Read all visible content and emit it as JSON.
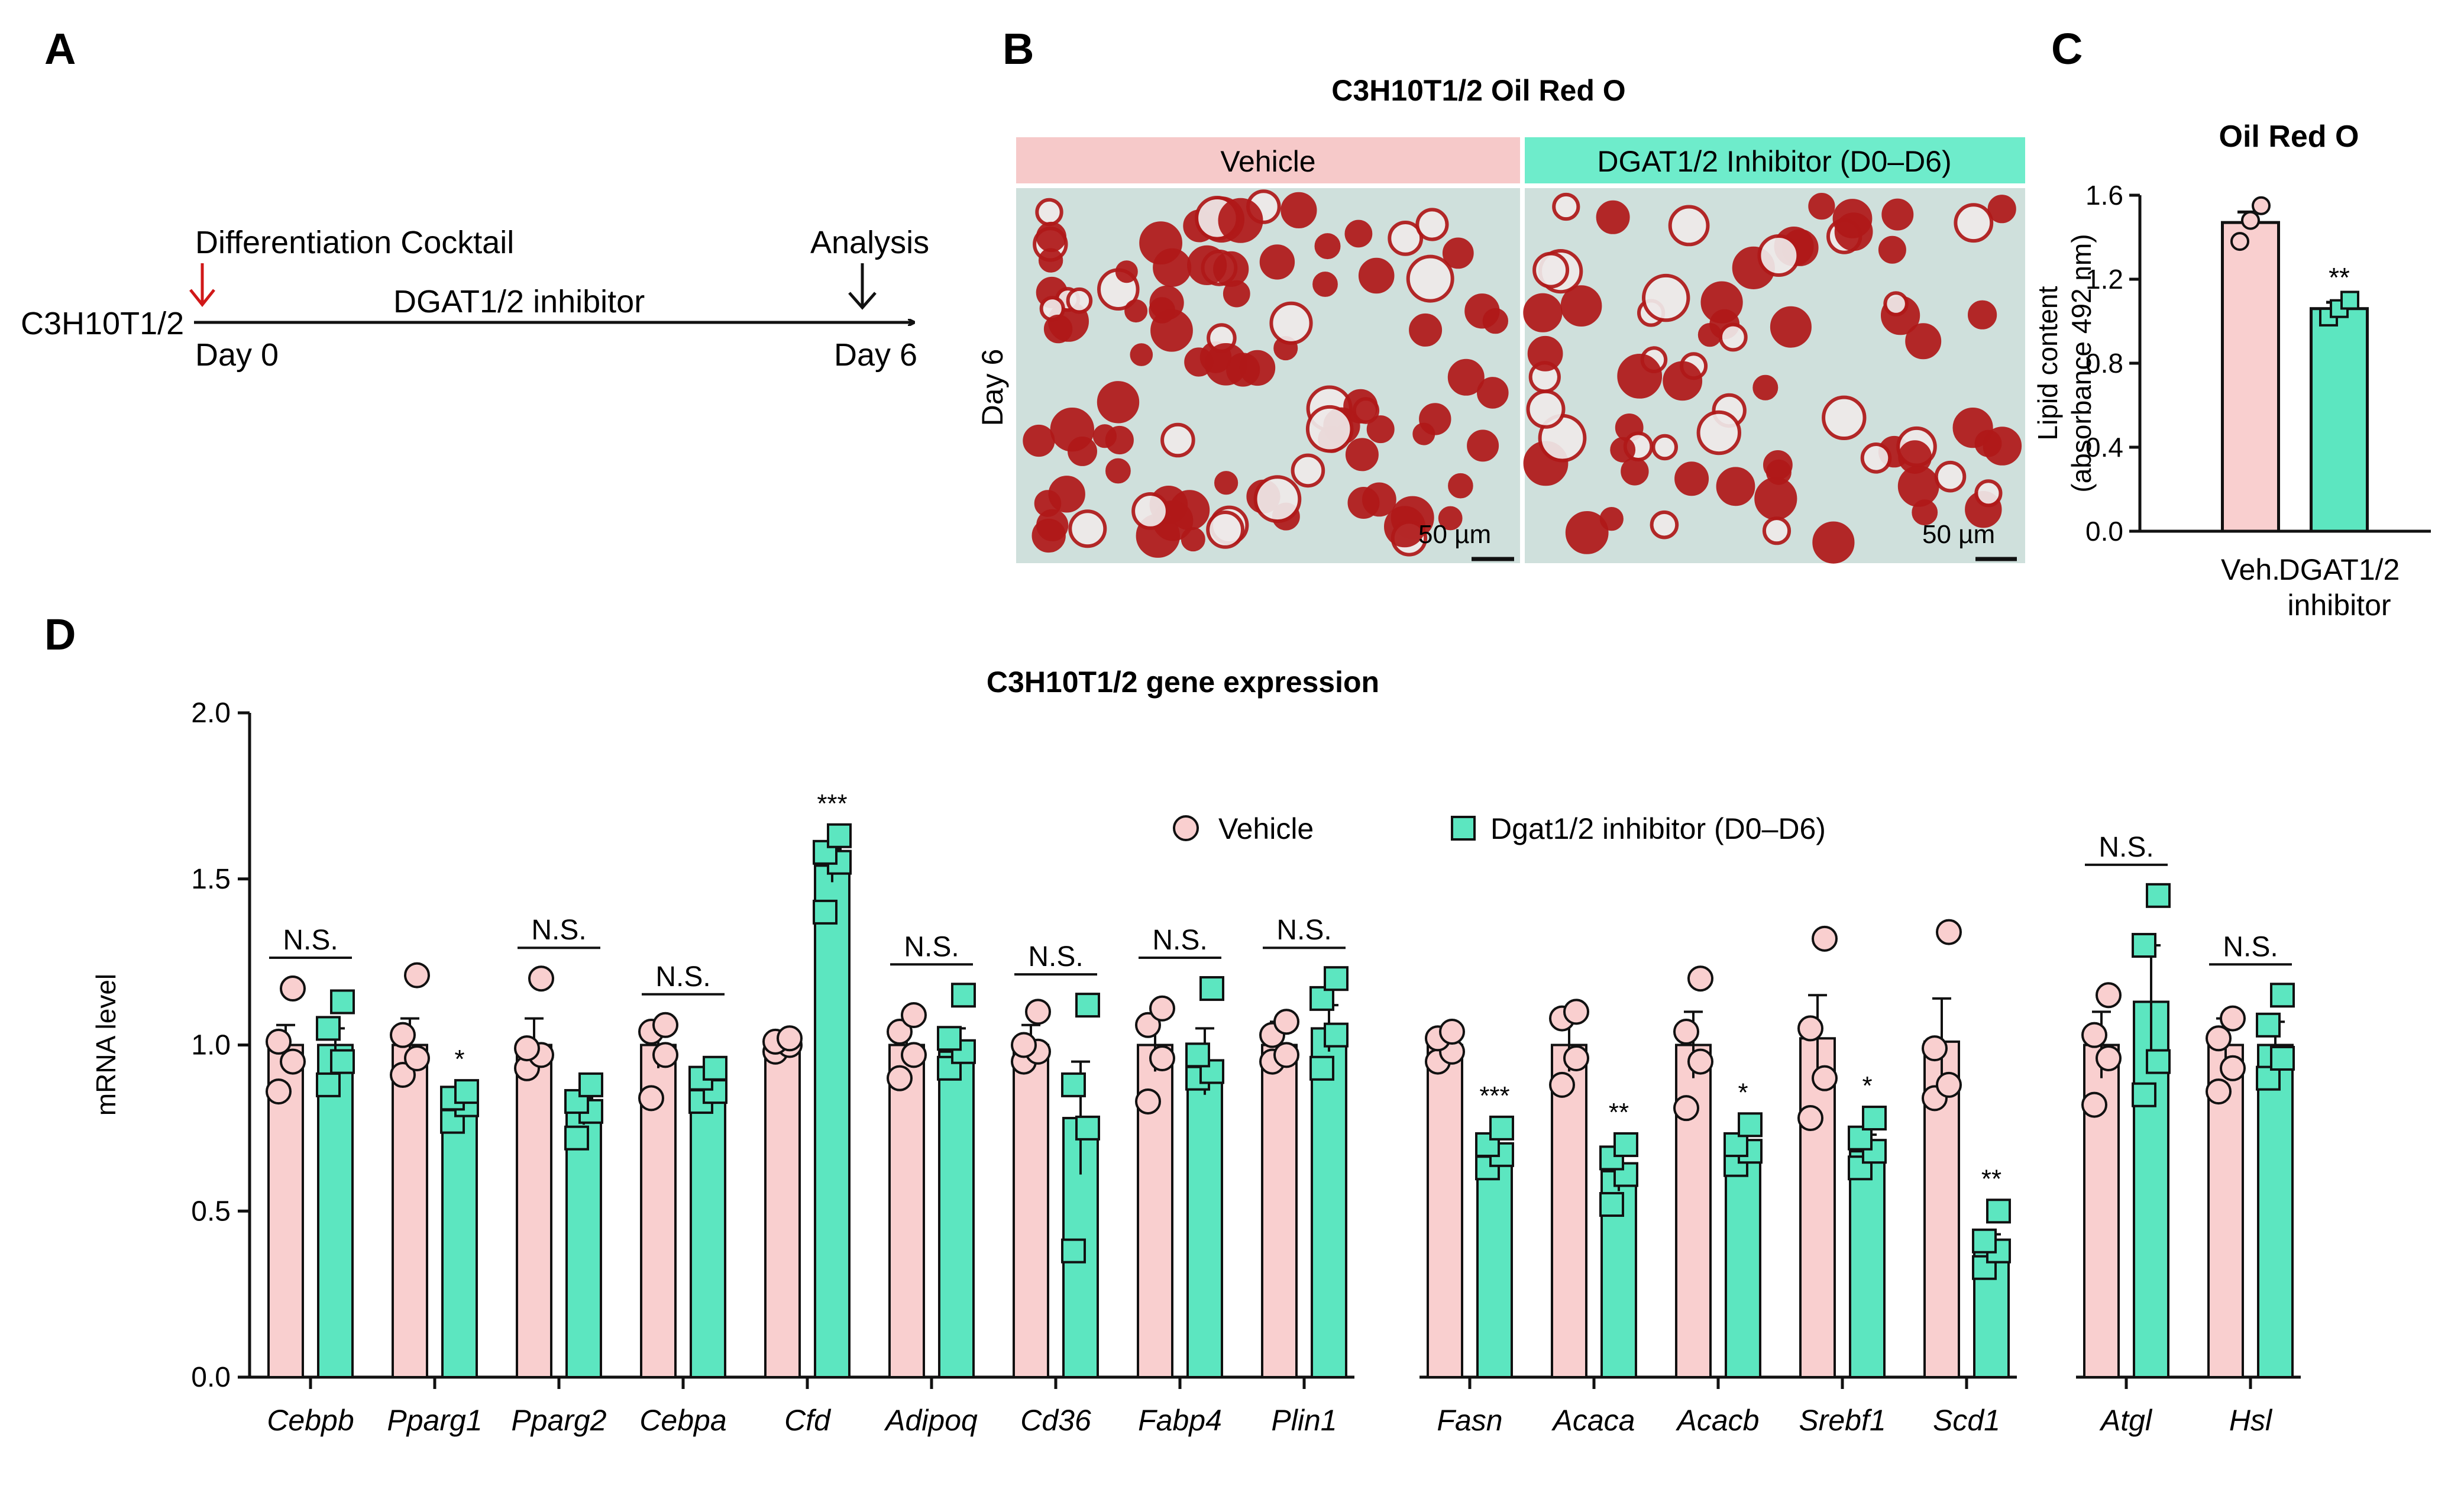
{
  "panels": {
    "a": "A",
    "b": "B",
    "c": "C",
    "d": "D"
  },
  "panel_a": {
    "cell_line": "C3H10T1/2",
    "cocktail": "Differentiation Cocktail",
    "treatment": "DGAT1/2 inhibitor",
    "analysis": "Analysis",
    "day_start": "Day 0",
    "day_end": "Day 6"
  },
  "panel_b": {
    "title": "C3H10T1/2 Oil Red O",
    "vehicle_label": "Vehicle",
    "inhibitor_label": "DGAT1/2 Inhibitor (D0–D6)",
    "row_label": "Day 6",
    "scale_bar_1": "50 µm",
    "scale_bar_2": "50 µm"
  },
  "colors": {
    "vehicle": "#f9cfcf",
    "inhibitor": "#5ce6c0",
    "header_vehicle": "#f6c9c9",
    "header_inhibitor": "#6eeccb",
    "stain_bg": "#cfe0dc",
    "stain_red": "#b01818",
    "arrow_red": "#d01818",
    "ink": "#111111"
  },
  "chart_data": [
    {
      "id": "C",
      "type": "bar",
      "title": "Oil Red O",
      "ylabel_line1": "Lipid content",
      "ylabel_line2": "(absorbance 492 nm)",
      "ylim": [
        0,
        1.6
      ],
      "yticks": [
        0.0,
        0.4,
        0.8,
        1.2,
        1.6
      ],
      "ytick_labels": [
        "0.0",
        "0.4",
        "0.8",
        "1.2",
        "1.6"
      ],
      "categories": [
        "Veh.",
        "DGAT1/2 inhibitor"
      ],
      "cat_lines": [
        [
          "Veh."
        ],
        [
          "DGAT1/2",
          "inhibitor"
        ]
      ],
      "means": [
        1.47,
        1.06
      ],
      "sems": [
        0.05,
        0.03
      ],
      "points": [
        [
          1.38,
          1.48,
          1.55
        ],
        [
          1.02,
          1.06,
          1.1
        ]
      ],
      "significance": [
        "",
        "**"
      ]
    },
    {
      "id": "D",
      "type": "bar",
      "title": "C3H10T1/2 gene expression",
      "ylabel": "mRNA level",
      "ylim": [
        0,
        2.0
      ],
      "yticks": [
        0.0,
        0.5,
        1.0,
        1.5,
        2.0
      ],
      "ytick_labels": [
        "0.0",
        "0.5",
        "1.0",
        "1.5",
        "2.0"
      ],
      "legend": [
        "Vehicle",
        "Dgat1/2 inhibitor (D0–D6)"
      ],
      "legend_position": "top-center",
      "categories": [
        "Cebpb",
        "Pparg1",
        "Pparg2",
        "Cebpa",
        "Cfd",
        "Adipoq",
        "Cd36",
        "Fabp4",
        "Plin1",
        "Fasn",
        "Acaca",
        "Acacb",
        "Srebf1",
        "Scd1",
        "Atgl",
        "Hsl"
      ],
      "groups": [
        [
          0,
          8
        ],
        [
          9,
          13
        ],
        [
          14,
          15
        ]
      ],
      "series": [
        {
          "name": "Vehicle",
          "means": [
            1.0,
            1.0,
            1.0,
            1.0,
            1.0,
            1.0,
            1.0,
            1.0,
            1.0,
            1.0,
            1.0,
            1.0,
            1.02,
            1.01,
            1.0,
            1.0
          ],
          "sems": [
            0.06,
            0.08,
            0.08,
            0.07,
            0.02,
            0.06,
            0.06,
            0.08,
            0.07,
            0.03,
            0.08,
            0.1,
            0.13,
            0.13,
            0.1,
            0.08
          ],
          "points": [
            [
              0.86,
              0.95,
              1.01,
              1.17
            ],
            [
              0.91,
              0.96,
              1.03,
              1.21
            ],
            [
              0.93,
              0.97,
              0.99,
              1.2
            ],
            [
              0.84,
              0.97,
              1.04,
              1.06
            ],
            [
              0.98,
              1.0,
              1.01,
              1.02
            ],
            [
              0.9,
              0.97,
              1.04,
              1.09
            ],
            [
              0.95,
              0.98,
              1.0,
              1.1
            ],
            [
              0.83,
              0.96,
              1.06,
              1.11
            ],
            [
              0.95,
              0.97,
              1.03,
              1.07
            ],
            [
              0.95,
              0.98,
              1.02,
              1.04
            ],
            [
              0.88,
              0.96,
              1.08,
              1.1
            ],
            [
              0.81,
              0.95,
              1.04,
              1.2
            ],
            [
              0.78,
              0.9,
              1.05,
              1.32
            ],
            [
              0.84,
              0.88,
              0.99,
              1.34
            ],
            [
              0.82,
              0.96,
              1.03,
              1.15
            ],
            [
              0.86,
              0.93,
              1.02,
              1.08
            ]
          ]
        },
        {
          "name": "Dgat1/2 inhibitor (D0–D6)",
          "means": [
            1.0,
            0.81,
            0.8,
            0.85,
            1.54,
            0.98,
            0.78,
            0.95,
            1.05,
            0.68,
            0.62,
            0.68,
            0.68,
            0.38,
            1.13,
            1.0
          ],
          "sems": [
            0.05,
            0.03,
            0.04,
            0.05,
            0.05,
            0.07,
            0.17,
            0.1,
            0.07,
            0.04,
            0.06,
            0.05,
            0.05,
            0.05,
            0.17,
            0.07
          ],
          "points": [
            [
              0.88,
              0.95,
              1.05,
              1.13
            ],
            [
              0.77,
              0.82,
              0.84,
              0.86
            ],
            [
              0.72,
              0.8,
              0.83,
              0.88
            ],
            [
              0.83,
              0.86,
              0.9,
              0.93
            ],
            [
              1.4,
              1.55,
              1.58,
              1.63
            ],
            [
              0.93,
              0.98,
              1.02,
              1.15
            ],
            [
              0.38,
              0.75,
              0.88,
              1.12
            ],
            [
              0.9,
              0.92,
              0.97,
              1.17
            ],
            [
              0.93,
              1.03,
              1.14,
              1.2
            ],
            [
              0.63,
              0.67,
              0.7,
              0.75
            ],
            [
              0.52,
              0.61,
              0.66,
              0.7
            ],
            [
              0.64,
              0.68,
              0.7,
              0.76
            ],
            [
              0.63,
              0.68,
              0.72,
              0.78
            ],
            [
              0.33,
              0.38,
              0.41,
              0.5
            ],
            [
              0.85,
              0.95,
              1.3,
              1.45
            ],
            [
              0.9,
              0.96,
              1.06,
              1.15
            ]
          ]
        }
      ],
      "significance": [
        "N.S.",
        "*",
        "N.S.",
        "N.S.",
        "***",
        "N.S.",
        "N.S.",
        "N.S.",
        "N.S.",
        "***",
        "**",
        "*",
        "*",
        "**",
        "N.S.",
        "N.S."
      ]
    }
  ]
}
